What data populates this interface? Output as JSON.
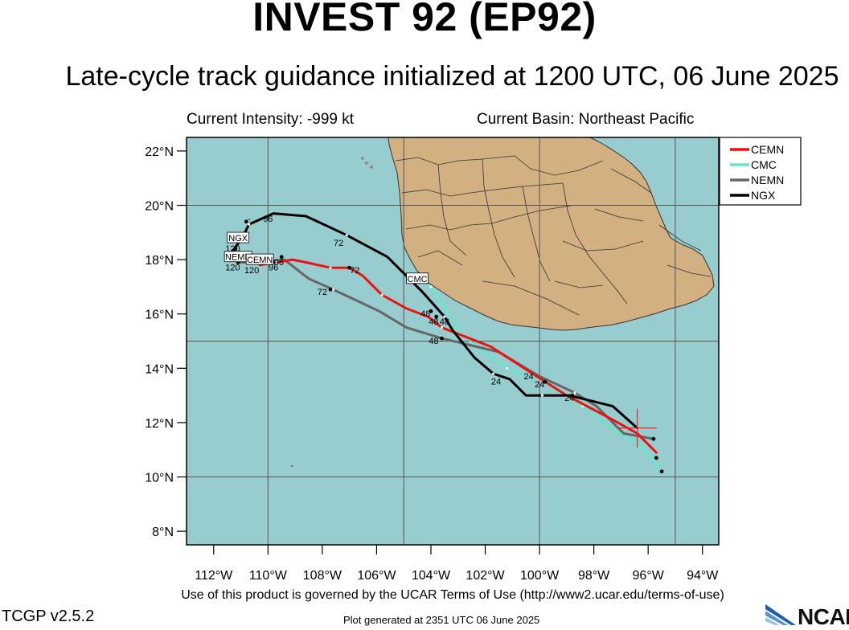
{
  "header": {
    "title": "INVEST 92 (EP92)",
    "subtitle": "Late-cycle track guidance initialized at 1200 UTC, 06 June 2025"
  },
  "info": {
    "intensity": "Current Intensity: -999 kt",
    "basin": "Current Basin: Northeast Pacific"
  },
  "map": {
    "lon_range": [
      -113,
      -93.4
    ],
    "lat_range": [
      7.5,
      22.5
    ],
    "lat_ticks": [
      {
        "value": 8,
        "label": "8°N"
      },
      {
        "value": 10,
        "label": "10°N"
      },
      {
        "value": 12,
        "label": "12°N"
      },
      {
        "value": 14,
        "label": "14°N"
      },
      {
        "value": 16,
        "label": "16°N"
      },
      {
        "value": 18,
        "label": "18°N"
      },
      {
        "value": 20,
        "label": "20°N"
      },
      {
        "value": 22,
        "label": "22°N"
      }
    ],
    "lon_ticks": [
      {
        "value": -112,
        "label": "112°W"
      },
      {
        "value": -110,
        "label": "110°W"
      },
      {
        "value": -108,
        "label": "108°W"
      },
      {
        "value": -106,
        "label": "106°W"
      },
      {
        "value": -104,
        "label": "104°W"
      },
      {
        "value": -102,
        "label": "102°W"
      },
      {
        "value": -100,
        "label": "100°W"
      },
      {
        "value": -98,
        "label": "98°W"
      },
      {
        "value": -96,
        "label": "96°W"
      },
      {
        "value": -94,
        "label": "94°W"
      }
    ],
    "gridlines": {
      "lons": [
        -110,
        -105,
        -100,
        -95
      ],
      "lats": [
        10,
        15,
        20
      ]
    },
    "colors": {
      "ocean": "#98cdd0",
      "land": "#d2b081",
      "border": "#333333"
    },
    "current_position": {
      "lon": -96.4,
      "lat": 11.8
    }
  },
  "legend": {
    "position": "top-right",
    "items": [
      {
        "name": "CEMN",
        "color": "#ee1111"
      },
      {
        "name": "CMC",
        "color": "#66e8c8"
      },
      {
        "name": "NEMN",
        "color": "#666666"
      },
      {
        "name": "NGX",
        "color": "#000000"
      }
    ]
  },
  "tracks": [
    {
      "name": "CMC",
      "color": "#66e8c8",
      "width": 2.5,
      "points": [
        [
          -95.5,
          10.2
        ],
        [
          -96.4,
          11.3
        ],
        [
          -97.1,
          11.6
        ],
        [
          -98.4,
          12.6
        ],
        [
          -99.2,
          13.1
        ],
        [
          -100.0,
          13.6
        ],
        [
          -101.2,
          14.0
        ],
        [
          -102.2,
          14.7
        ],
        [
          -103.0,
          15.4
        ],
        [
          -104.0,
          17.0
        ],
        [
          -104.8,
          17.5
        ]
      ]
    },
    {
      "name": "NEMN",
      "color": "#666666",
      "width": 3,
      "points": [
        [
          -95.8,
          11.4
        ],
        [
          -96.9,
          11.6
        ],
        [
          -97.9,
          12.6
        ],
        [
          -98.7,
          13.1
        ],
        [
          -100.0,
          13.7
        ],
        [
          -101.5,
          14.6
        ],
        [
          -103.6,
          15.1
        ],
        [
          -104.9,
          15.5
        ],
        [
          -105.9,
          16.1
        ],
        [
          -107.6,
          16.9
        ],
        [
          -108.5,
          17.3
        ],
        [
          -109.4,
          18.0
        ],
        [
          -110.3,
          17.9
        ],
        [
          -111.1,
          17.9
        ]
      ]
    },
    {
      "name": "CEMN",
      "color": "#ee1111",
      "width": 3,
      "points": [
        [
          -95.7,
          10.9
        ],
        [
          -96.4,
          11.6
        ],
        [
          -97.3,
          12.1
        ],
        [
          -99.0,
          13.0
        ],
        [
          -100.1,
          13.7
        ],
        [
          -101.8,
          14.8
        ],
        [
          -103.6,
          15.5
        ],
        [
          -104.1,
          15.9
        ],
        [
          -104.9,
          16.2
        ],
        [
          -105.8,
          16.7
        ],
        [
          -106.5,
          17.4
        ],
        [
          -107.0,
          17.7
        ],
        [
          -107.7,
          17.7
        ],
        [
          -108.6,
          17.9
        ],
        [
          -109.1,
          18.0
        ],
        [
          -109.7,
          17.9
        ],
        [
          -110.3,
          17.8
        ]
      ]
    },
    {
      "name": "NGX",
      "color": "#000000",
      "width": 3,
      "points": [
        [
          -96.4,
          11.8
        ],
        [
          -97.3,
          12.6
        ],
        [
          -98.9,
          13.0
        ],
        [
          -99.9,
          13.0
        ],
        [
          -100.5,
          13.0
        ],
        [
          -101.1,
          13.6
        ],
        [
          -101.7,
          13.8
        ],
        [
          -102.4,
          14.4
        ],
        [
          -103.2,
          15.4
        ],
        [
          -103.5,
          15.9
        ],
        [
          -104.3,
          16.8
        ],
        [
          -105.6,
          18.1
        ],
        [
          -107.1,
          18.9
        ],
        [
          -108.6,
          19.6
        ],
        [
          -109.8,
          19.7
        ],
        [
          -110.7,
          19.3
        ],
        [
          -110.9,
          18.9
        ],
        [
          -111.3,
          18.3
        ]
      ]
    }
  ],
  "markers": [
    {
      "lon": -95.5,
      "lat": 10.2
    },
    {
      "lon": -95.7,
      "lat": 10.7
    },
    {
      "lon": -95.8,
      "lat": 11.4
    },
    {
      "lon": -98.8,
      "lat": 13.0
    },
    {
      "lon": -99.8,
      "lat": 13.5
    },
    {
      "lon": -103.6,
      "lat": 15.1
    },
    {
      "lon": -104.0,
      "lat": 16.1
    },
    {
      "lon": -103.8,
      "lat": 15.9
    },
    {
      "lon": -107.7,
      "lat": 16.9
    },
    {
      "lon": -107.0,
      "lat": 17.7
    },
    {
      "lon": -109.5,
      "lat": 18.1
    },
    {
      "lon": -109.8,
      "lat": 17.9
    },
    {
      "lon": -111.1,
      "lat": 17.9
    },
    {
      "lon": -111.2,
      "lat": 18.4
    },
    {
      "lon": -110.8,
      "lat": 19.4
    }
  ],
  "time_labels": [
    {
      "lon": -101.6,
      "lat": 13.4,
      "text": "24"
    },
    {
      "lon": -100.4,
      "lat": 13.6,
      "text": "24"
    },
    {
      "lon": -100.0,
      "lat": 13.3,
      "text": "24"
    },
    {
      "lon": -98.9,
      "lat": 12.8,
      "text": "24"
    },
    {
      "lon": -104.2,
      "lat": 15.9,
      "text": "48"
    },
    {
      "lon": -103.9,
      "lat": 15.6,
      "text": "48"
    },
    {
      "lon": -103.5,
      "lat": 15.6,
      "text": "48"
    },
    {
      "lon": -103.9,
      "lat": 14.9,
      "text": "48"
    },
    {
      "lon": -107.4,
      "lat": 18.5,
      "text": "72"
    },
    {
      "lon": -106.8,
      "lat": 17.5,
      "text": "72"
    },
    {
      "lon": -108.0,
      "lat": 16.7,
      "text": "72"
    },
    {
      "lon": -110.0,
      "lat": 19.4,
      "text": "96"
    },
    {
      "lon": -109.6,
      "lat": 17.8,
      "text": "96"
    },
    {
      "lon": -109.8,
      "lat": 17.6,
      "text": "96"
    },
    {
      "lon": -111.3,
      "lat": 17.6,
      "text": "120"
    },
    {
      "lon": -110.6,
      "lat": 17.5,
      "text": "120"
    },
    {
      "lon": -111.3,
      "lat": 18.3,
      "text": "120"
    }
  ],
  "track_labels": [
    {
      "lon": -111.1,
      "lat": 18.8,
      "text": "NGX"
    },
    {
      "lon": -111.1,
      "lat": 18.1,
      "text": "NEMN"
    },
    {
      "lon": -110.3,
      "lat": 18.0,
      "text": "CEMN"
    },
    {
      "lon": -104.5,
      "lat": 17.3,
      "text": "CMC"
    }
  ],
  "footer": {
    "terms": "Use of this product is governed by the UCAR Terms of Use (http://www2.ucar.edu/terms-of-use)",
    "version": "TCGP v2.5.2",
    "generated": "Plot generated at 2351 UTC   06 June 2025",
    "logo_text": "NCAR"
  }
}
